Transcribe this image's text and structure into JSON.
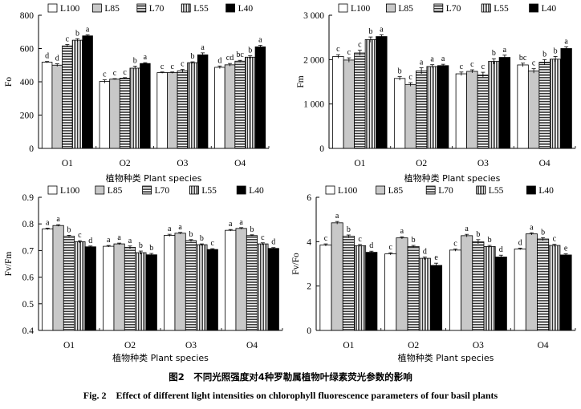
{
  "caption": {
    "cn": "图2　不同光照强度对4种罗勒属植物叶绿素荧光参数的影响",
    "en": "Fig. 2　Effect of different light intensities on chlorophyll fluorescence parameters of four basil plants"
  },
  "colors": {
    "L100": "#ffffff",
    "L85": "#c8c8c8",
    "L70": "hlines-fine",
    "L55": "vlines",
    "L40": "#000000"
  },
  "chart_data": [
    {
      "type": "bar",
      "ylabel": "Fo",
      "xlabel": "植物种类 Plant species",
      "ylim": [
        0,
        800
      ],
      "yticks": [
        0,
        200,
        400,
        600,
        800
      ],
      "ytick_labels": [
        "0",
        "200",
        "400",
        "600",
        "800"
      ],
      "categories": [
        "O1",
        "O2",
        "O3",
        "O4"
      ],
      "legend": [
        "L100",
        "L85",
        "L70",
        "L55",
        "L40"
      ],
      "series": [
        {
          "name": "L100",
          "values": [
            518,
            402,
            455,
            487
          ],
          "errors": [
            4,
            10,
            4,
            8
          ],
          "letters": [
            "d",
            "c",
            "c",
            "d"
          ]
        },
        {
          "name": "L85",
          "values": [
            500,
            416,
            455,
            502
          ],
          "errors": [
            8,
            3,
            4,
            8
          ],
          "letters": [
            "d",
            "c",
            "c",
            "cd"
          ]
        },
        {
          "name": "L70",
          "values": [
            616,
            422,
            466,
            524
          ],
          "errors": [
            8,
            3,
            8,
            5
          ],
          "letters": [
            "c",
            "c",
            "c",
            "bc"
          ]
        },
        {
          "name": "L55",
          "values": [
            650,
            482,
            515,
            548
          ],
          "errors": [
            9,
            12,
            5,
            8
          ],
          "letters": [
            "b",
            "b",
            "b",
            "b"
          ]
        },
        {
          "name": "L40",
          "values": [
            676,
            510,
            562,
            610
          ],
          "errors": [
            6,
            5,
            12,
            9
          ],
          "letters": [
            "a",
            "a",
            "a",
            "a"
          ]
        }
      ]
    },
    {
      "type": "bar",
      "ylabel": "Fm",
      "xlabel": "植物种类 Plant species",
      "ylim": [
        0,
        3000
      ],
      "yticks": [
        0,
        1000,
        2000,
        3000
      ],
      "ytick_labels": [
        "0",
        "1 000",
        "2 000",
        "3 000"
      ],
      "categories": [
        "O1",
        "O2",
        "O3",
        "O4"
      ],
      "legend": [
        "L100",
        "L85",
        "L70",
        "L55",
        "L40"
      ],
      "series": [
        {
          "name": "L100",
          "values": [
            2070,
            1575,
            1680,
            1880
          ],
          "errors": [
            40,
            40,
            40,
            40
          ],
          "letters": [
            "c",
            "b",
            "c",
            "bc"
          ]
        },
        {
          "name": "L85",
          "values": [
            1990,
            1440,
            1735,
            1745
          ],
          "errors": [
            50,
            40,
            35,
            50
          ],
          "letters": [
            "c",
            "c",
            "c",
            "c"
          ]
        },
        {
          "name": "L70",
          "values": [
            2150,
            1745,
            1655,
            1940
          ],
          "errors": [
            60,
            70,
            60,
            60
          ],
          "letters": [
            "c",
            "a",
            "c",
            "b"
          ]
        },
        {
          "name": "L55",
          "values": [
            2450,
            1845,
            1960,
            2010
          ],
          "errors": [
            60,
            40,
            60,
            60
          ],
          "letters": [
            "b",
            "a",
            "b",
            "b"
          ]
        },
        {
          "name": "L40",
          "values": [
            2520,
            1865,
            2050,
            2250
          ],
          "errors": [
            40,
            30,
            50,
            40
          ],
          "letters": [
            "a",
            "a",
            "a",
            "a"
          ]
        }
      ]
    },
    {
      "type": "bar",
      "ylabel": "Fv/Fm",
      "xlabel": "植物种类 Plant species",
      "ylim": [
        0.4,
        0.9
      ],
      "yticks": [
        0.4,
        0.5,
        0.6,
        0.7,
        0.8,
        0.9
      ],
      "ytick_labels": [
        "0.4",
        "0.5",
        "0.6",
        "0.7",
        "0.8",
        "0.9"
      ],
      "categories": [
        "O1",
        "O2",
        "O3",
        "O4"
      ],
      "legend": [
        "L100",
        "L85",
        "L70",
        "L55",
        "L40"
      ],
      "series": [
        {
          "name": "L100",
          "values": [
            0.781,
            0.716,
            0.757,
            0.776
          ],
          "errors": [
            0.003,
            0.003,
            0.004,
            0.003
          ],
          "letters": [
            "a",
            "a",
            "a",
            "a"
          ]
        },
        {
          "name": "L85",
          "values": [
            0.794,
            0.725,
            0.765,
            0.783
          ],
          "errors": [
            0.003,
            0.003,
            0.003,
            0.003
          ],
          "letters": [
            "a",
            "a",
            "a",
            "a"
          ]
        },
        {
          "name": "L70",
          "values": [
            0.754,
            0.712,
            0.737,
            0.756
          ],
          "errors": [
            0.003,
            0.005,
            0.004,
            0.003
          ],
          "letters": [
            "b",
            "a",
            "b",
            "b"
          ]
        },
        {
          "name": "L55",
          "values": [
            0.733,
            0.692,
            0.722,
            0.725
          ],
          "errors": [
            0.004,
            0.006,
            0.003,
            0.004
          ],
          "letters": [
            "c",
            "b",
            "b",
            "c"
          ]
        },
        {
          "name": "L40",
          "values": [
            0.714,
            0.684,
            0.704,
            0.708
          ],
          "errors": [
            0.003,
            0.005,
            0.003,
            0.003
          ],
          "letters": [
            "d",
            "b",
            "c",
            "d"
          ]
        }
      ]
    },
    {
      "type": "bar",
      "ylabel": "Fv/Fo",
      "xlabel": "植物种类 Plant species",
      "ylim": [
        0,
        6
      ],
      "yticks": [
        0,
        2,
        4,
        6
      ],
      "ytick_labels": [
        "0",
        "2",
        "4",
        "6"
      ],
      "categories": [
        "O1",
        "O2",
        "O3",
        "O4"
      ],
      "legend": [
        "L100",
        "L85",
        "L70",
        "L55",
        "L40"
      ],
      "series": [
        {
          "name": "L100",
          "values": [
            3.85,
            3.45,
            3.62,
            3.67
          ],
          "errors": [
            0.05,
            0.05,
            0.05,
            0.04
          ],
          "letters": [
            "c",
            "c",
            "c",
            "d"
          ]
        },
        {
          "name": "L85",
          "values": [
            4.85,
            4.17,
            4.27,
            4.35
          ],
          "errors": [
            0.06,
            0.05,
            0.06,
            0.05
          ],
          "letters": [
            "a",
            "a",
            "a",
            "a"
          ]
        },
        {
          "name": "L70",
          "values": [
            4.25,
            3.78,
            3.99,
            4.12
          ],
          "errors": [
            0.05,
            0.05,
            0.1,
            0.06
          ],
          "letters": [
            "b",
            "b",
            "b",
            "b"
          ]
        },
        {
          "name": "L55",
          "values": [
            3.82,
            3.25,
            3.78,
            3.83
          ],
          "errors": [
            0.05,
            0.06,
            0.05,
            0.05
          ],
          "letters": [
            "c",
            "d",
            "b",
            "c"
          ]
        },
        {
          "name": "L40",
          "values": [
            3.52,
            2.93,
            3.31,
            3.4
          ],
          "errors": [
            0.05,
            0.1,
            0.08,
            0.05
          ],
          "letters": [
            "d",
            "e",
            "d",
            "e"
          ]
        }
      ]
    }
  ]
}
